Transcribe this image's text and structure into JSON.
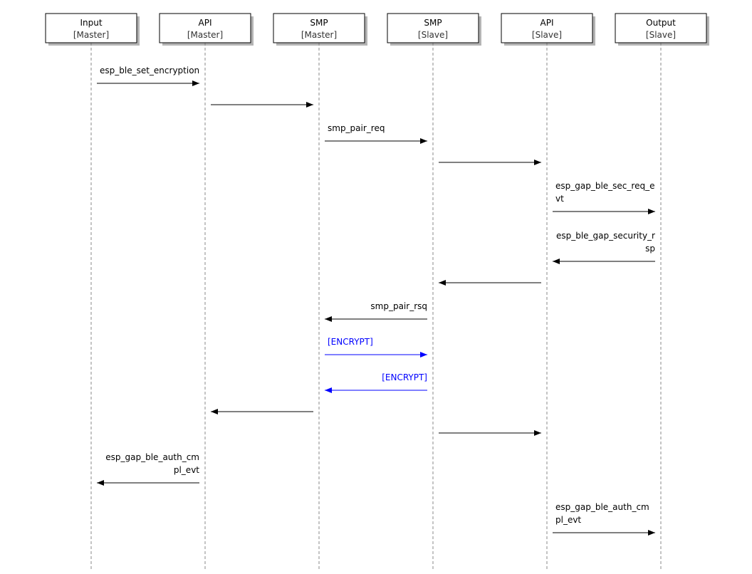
{
  "participants": [
    {
      "name": "Input",
      "role": "[Master]"
    },
    {
      "name": "API",
      "role": "[Master]"
    },
    {
      "name": "SMP",
      "role": "[Master]"
    },
    {
      "name": "SMP",
      "role": "[Slave]"
    },
    {
      "name": "API",
      "role": "[Slave]"
    },
    {
      "name": "Output",
      "role": "[Slave]"
    }
  ],
  "colors": {
    "default": "#000000",
    "encrypt": "#0000ff",
    "lifeline": "#888888"
  },
  "messages": [
    {
      "from": 0,
      "to": 1,
      "lines": [
        "esp_ble_set_encryption"
      ]
    },
    {
      "from": 1,
      "to": 2,
      "lines": []
    },
    {
      "from": 2,
      "to": 3,
      "lines": [
        "smp_pair_req"
      ]
    },
    {
      "from": 3,
      "to": 4,
      "lines": []
    },
    {
      "from": 4,
      "to": 5,
      "lines": [
        "esp_gap_ble_sec_req_e",
        "vt"
      ]
    },
    {
      "from": 5,
      "to": 4,
      "lines": [
        "esp_ble_gap_security_r",
        "sp"
      ]
    },
    {
      "from": 4,
      "to": 3,
      "lines": []
    },
    {
      "from": 3,
      "to": 2,
      "lines": [
        "smp_pair_rsq"
      ]
    },
    {
      "from": 2,
      "to": 3,
      "lines": [
        "[ENCRYPT]"
      ],
      "color": "encrypt"
    },
    {
      "from": 3,
      "to": 2,
      "lines": [
        "[ENCRYPT]"
      ],
      "color": "encrypt"
    },
    {
      "from": 2,
      "to": 1,
      "lines": []
    },
    {
      "from": 3,
      "to": 4,
      "lines": []
    },
    {
      "from": 1,
      "to": 0,
      "lines": [
        "esp_gap_ble_auth_cm",
        "pl_evt"
      ]
    },
    {
      "from": 4,
      "to": 5,
      "lines": [
        "esp_gap_ble_auth_cm",
        "pl_evt"
      ]
    }
  ]
}
